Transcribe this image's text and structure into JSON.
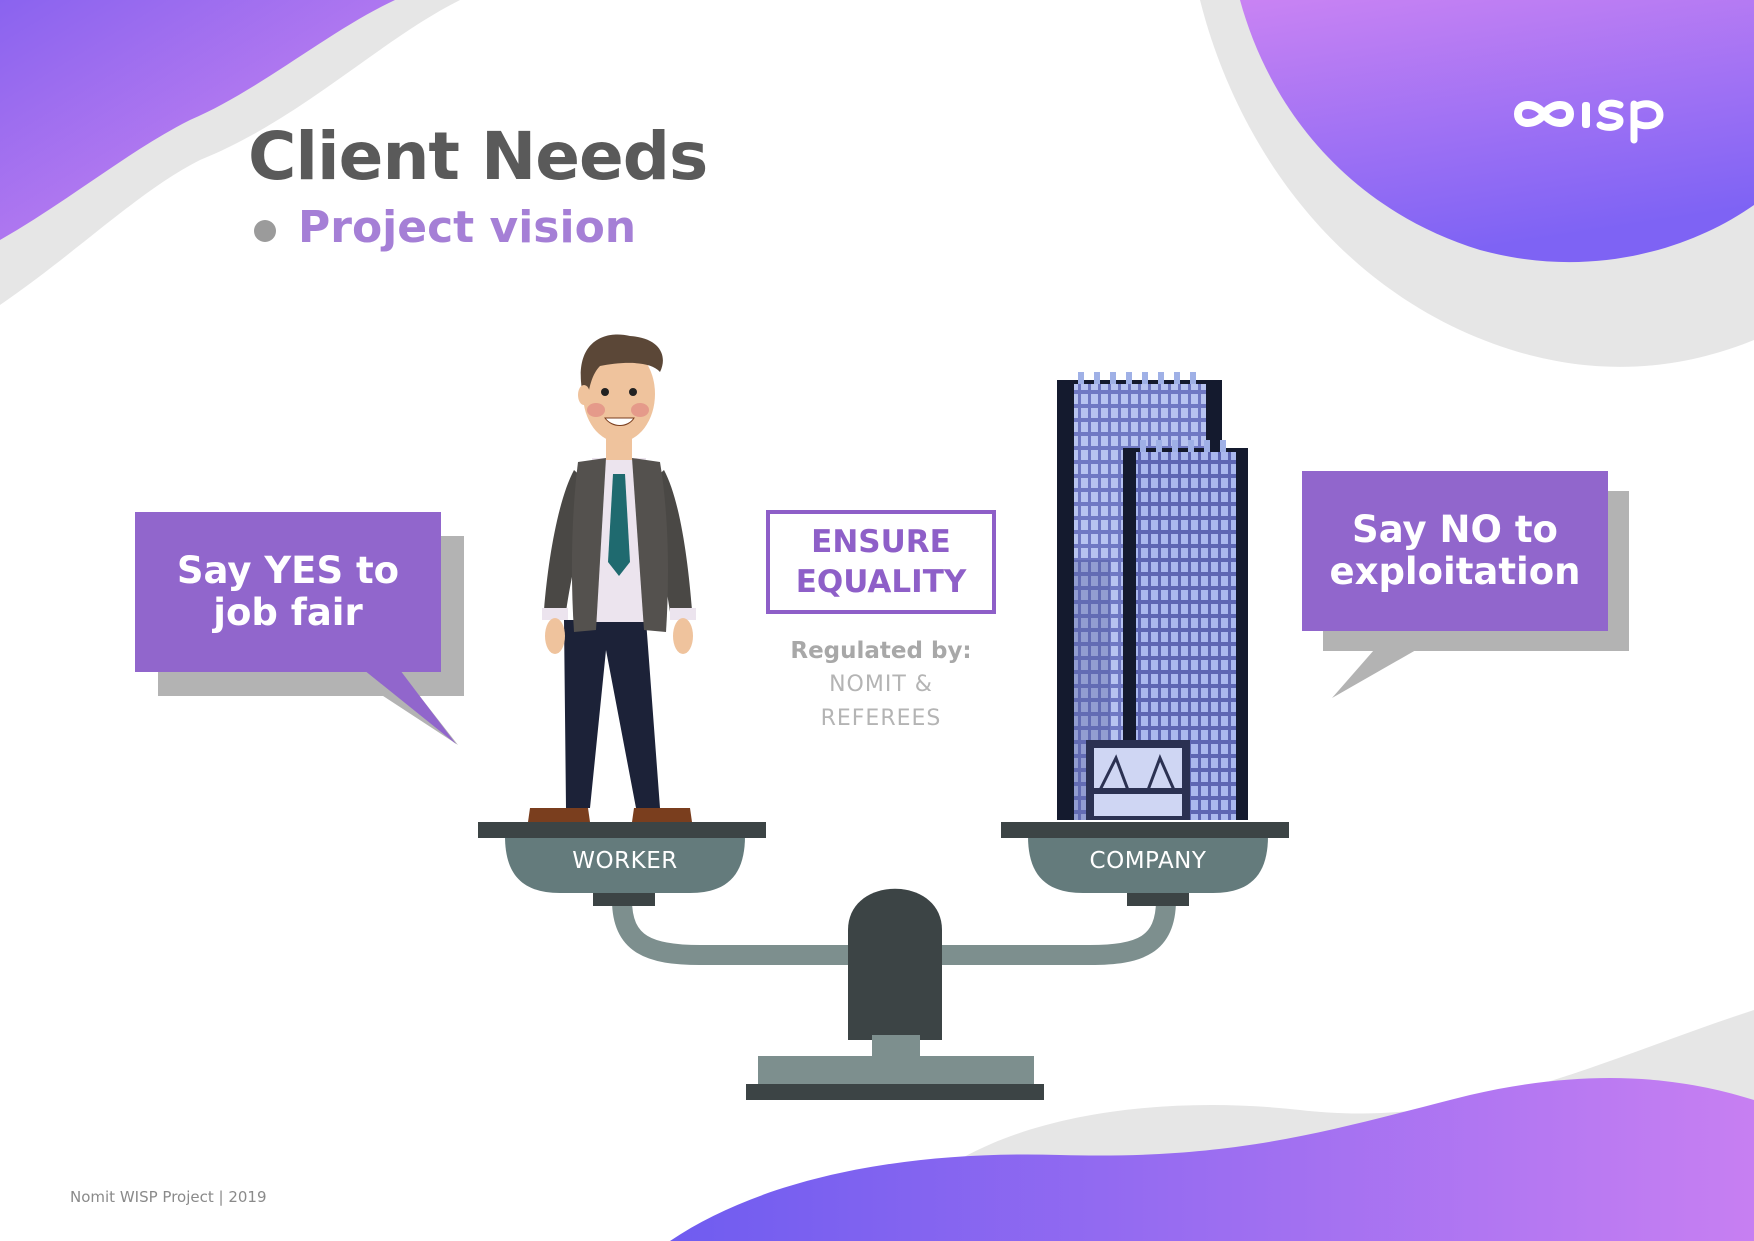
{
  "slide": {
    "title": "Client Needs",
    "subtitle": "Project vision",
    "logo_text": "WISP",
    "left_bubble": {
      "line1": "Say YES to",
      "line2": "job fair"
    },
    "right_bubble": {
      "line1": "Say NO to",
      "line2": "exploitation"
    },
    "center_box": {
      "line1": "ENSURE",
      "line2": "EQUALITY"
    },
    "regulation": {
      "title": "Regulated by:",
      "line1": "NOMIT &",
      "line2": "REFEREES"
    },
    "scale": {
      "left_pan_label": "WORKER",
      "right_pan_label": "COMPANY"
    },
    "footer": "Nomit WISP Project  |  2019"
  },
  "colors": {
    "purple": "#9166cc",
    "lavender": "#a57fd6",
    "bubble_shadow": "#b3b3b3",
    "scale_dark": "#3c4445",
    "scale_mid": "#647b7c",
    "scale_light": "#7d8f8e"
  },
  "icons": [
    "infinity-logo-icon",
    "worker-figure-icon",
    "office-building-icon",
    "balance-scale-icon"
  ]
}
